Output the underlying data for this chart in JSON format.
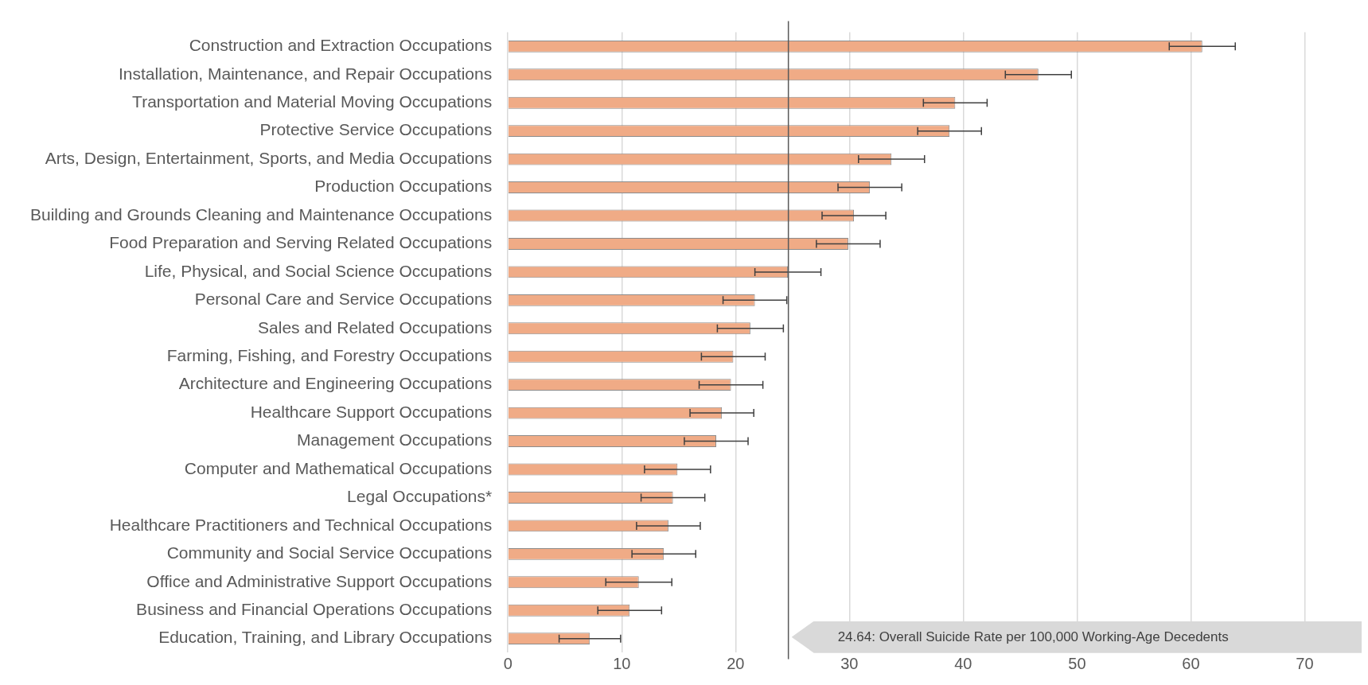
{
  "chart_data": {
    "type": "bar",
    "orientation": "horizontal",
    "categories": [
      "Construction and Extraction Occupations",
      "Installation, Maintenance, and Repair Occupations",
      "Transportation and Material Moving Occupations",
      "Protective Service Occupations",
      "Arts, Design, Entertainment, Sports, and Media Occupations",
      "Production Occupations",
      "Building and Grounds Cleaning and Maintenance Occupations",
      "Food Preparation and Serving Related Occupations",
      "Life, Physical, and Social Science Occupations",
      "Personal Care and Service Occupations",
      "Sales and Related Occupations",
      "Farming, Fishing, and Forestry Occupations",
      "Architecture and Engineering Occupations",
      "Healthcare Support Occupations",
      "Management Occupations",
      "Computer and Mathematical Occupations",
      "Legal Occupations*",
      "Healthcare Practitioners and Technical Occupations",
      "Community and Social Service Occupations",
      "Office and Administrative Support Occupations",
      "Business and Financial Operations Occupations",
      "Education, Training, and Library Occupations"
    ],
    "values": [
      61.0,
      46.6,
      39.3,
      38.8,
      33.7,
      31.8,
      30.4,
      29.9,
      24.6,
      21.7,
      21.3,
      19.8,
      19.6,
      18.8,
      18.3,
      14.9,
      14.5,
      14.1,
      13.7,
      11.5,
      10.7,
      7.2
    ],
    "errors": [
      2.9,
      2.9,
      2.8,
      2.8,
      2.9,
      2.8,
      2.8,
      2.8,
      2.9,
      2.8,
      2.9,
      2.8,
      2.8,
      2.8,
      2.8,
      2.9,
      2.8,
      2.8,
      2.8,
      2.9,
      2.8,
      2.7
    ],
    "color": "#f0ab86",
    "xlim": [
      0,
      75
    ],
    "xticks": [
      0,
      10,
      20,
      30,
      40,
      50,
      60,
      70
    ],
    "grid": "x",
    "ref_lines": [
      {
        "axis": "x",
        "value": 24.64,
        "label": "24.64: Overall Suicide Rate per 100,000 Working-Age Decedents",
        "color": "#595959"
      }
    ]
  }
}
